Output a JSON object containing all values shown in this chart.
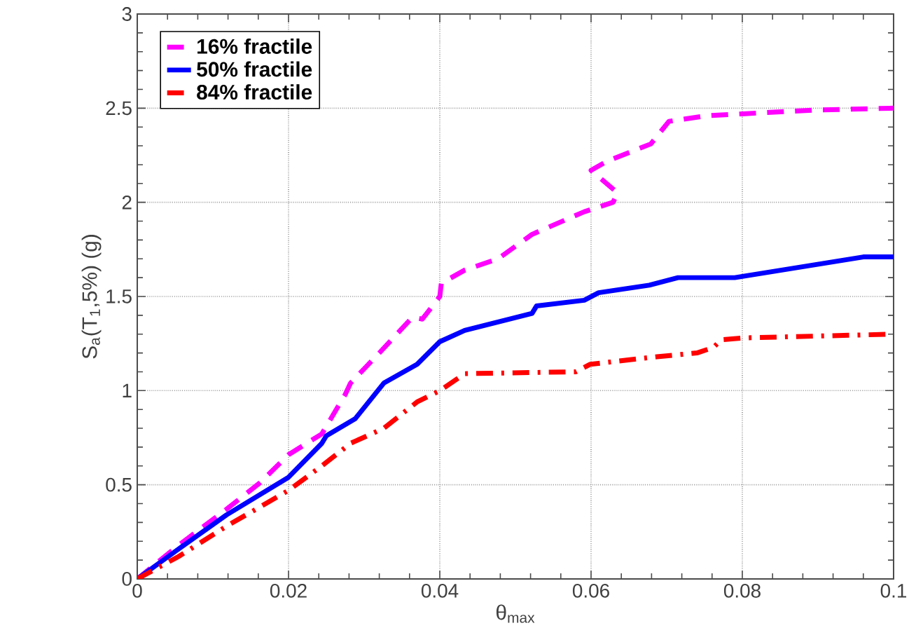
{
  "chart_data": {
    "type": "line",
    "xlabel": "θ$_{max}$",
    "ylabel": "S$_{a}$(T$_{1}$,5%) (g)",
    "xlim": [
      0,
      0.1
    ],
    "ylim": [
      0,
      3
    ],
    "xticks": [
      0,
      0.02,
      0.04,
      0.06,
      0.08,
      0.1
    ],
    "yticks": [
      0,
      0.5,
      1,
      1.5,
      2,
      2.5,
      3
    ],
    "grid": true,
    "legend": "top left",
    "series": [
      {
        "name": "16% fractile",
        "color": "#ff00ff",
        "line_style": "dashed",
        "x": [
          0,
          0.0055,
          0.0118,
          0.0162,
          0.02,
          0.0244,
          0.0275,
          0.0282,
          0.032,
          0.0364,
          0.0377,
          0.04,
          0.0402,
          0.0433,
          0.0477,
          0.0522,
          0.0591,
          0.0629,
          0.0635,
          0.06,
          0.0622,
          0.0679,
          0.0703,
          0.0753,
          0.08,
          0.0897,
          0.1
        ],
        "values": [
          0,
          0.18,
          0.37,
          0.51,
          0.66,
          0.77,
          0.98,
          1.04,
          1.2,
          1.39,
          1.38,
          1.5,
          1.57,
          1.64,
          1.7,
          1.83,
          1.95,
          2.0,
          2.05,
          2.17,
          2.22,
          2.31,
          2.43,
          2.46,
          2.47,
          2.49,
          2.5
        ]
      },
      {
        "name": "50% fractile",
        "color": "#0000ff",
        "line_style": "solid",
        "x": [
          0,
          0.0055,
          0.0118,
          0.02,
          0.0244,
          0.025,
          0.0288,
          0.0326,
          0.037,
          0.04,
          0.0433,
          0.0522,
          0.0528,
          0.0591,
          0.061,
          0.0677,
          0.0715,
          0.079,
          0.096,
          0.1
        ],
        "values": [
          0,
          0.16,
          0.34,
          0.54,
          0.72,
          0.76,
          0.85,
          1.04,
          1.14,
          1.26,
          1.32,
          1.41,
          1.45,
          1.48,
          1.52,
          1.56,
          1.6,
          1.6,
          1.71,
          1.71
        ]
      },
      {
        "name": "84% fractile",
        "color": "#ff0000",
        "line_style": "dashdot",
        "x": [
          0,
          0.0055,
          0.0118,
          0.02,
          0.0244,
          0.0282,
          0.0326,
          0.037,
          0.04,
          0.0433,
          0.058,
          0.0599,
          0.0687,
          0.074,
          0.0762,
          0.0772,
          0.0803,
          0.1
        ],
        "values": [
          0,
          0.12,
          0.28,
          0.47,
          0.6,
          0.72,
          0.8,
          0.94,
          1.0,
          1.09,
          1.1,
          1.14,
          1.18,
          1.2,
          1.23,
          1.27,
          1.28,
          1.3
        ]
      }
    ]
  }
}
